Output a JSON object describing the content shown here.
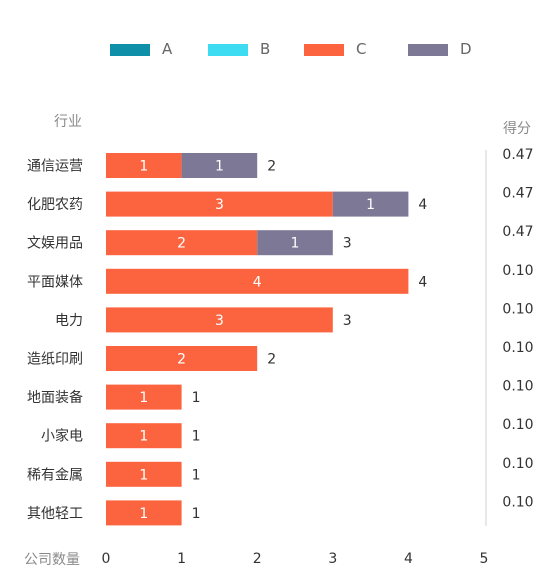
{
  "chart_data": {
    "type": "bar",
    "orientation": "horizontal",
    "stacked": true,
    "categories": [
      "通信运营",
      "化肥农药",
      "文娱用品",
      "平面媒体",
      "电力",
      "造纸印刷",
      "地面装备",
      "小家电",
      "稀有金属",
      "其他轻工"
    ],
    "series": [
      {
        "name": "A",
        "color": "#0f8fa8",
        "values": [
          0,
          0,
          0,
          0,
          0,
          0,
          0,
          0,
          0,
          0
        ]
      },
      {
        "name": "B",
        "color": "#3ddcf2",
        "values": [
          0,
          0,
          0,
          0,
          0,
          0,
          0,
          0,
          0,
          0
        ]
      },
      {
        "name": "C",
        "color": "#fc6440",
        "values": [
          1,
          3,
          2,
          4,
          3,
          2,
          1,
          1,
          1,
          1
        ]
      },
      {
        "name": "D",
        "color": "#7d7895",
        "values": [
          1,
          1,
          1,
          0,
          0,
          0,
          0,
          0,
          0,
          0
        ]
      }
    ],
    "totals": [
      2,
      4,
      3,
      4,
      3,
      2,
      1,
      1,
      1,
      1
    ],
    "scores": [
      "0.47",
      "0.47",
      "0.47",
      "0.10",
      "0.10",
      "0.10",
      "0.10",
      "0.10",
      "0.10",
      "0.10"
    ],
    "category_axis_title": "行业",
    "score_axis_title": "得分",
    "value_axis_title": "公司数量",
    "xticks": [
      "0",
      "1",
      "2",
      "3",
      "4",
      "5"
    ],
    "xlim": [
      0,
      5
    ],
    "legend_position": "top",
    "grid": false
  }
}
